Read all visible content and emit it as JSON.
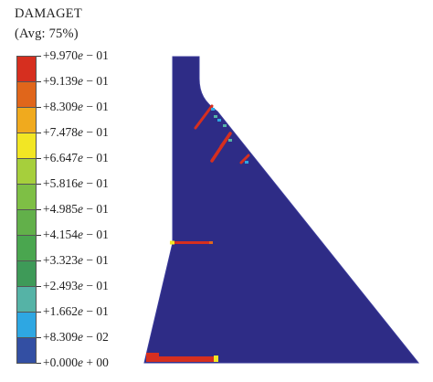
{
  "legend": {
    "variable": "DAMAGET",
    "averaging": "(Avg: 75%)",
    "levels": [
      {
        "mantissa": "+9.970",
        "e": "e",
        "exponent": " − 01"
      },
      {
        "mantissa": "+9.139",
        "e": "e",
        "exponent": " − 01"
      },
      {
        "mantissa": "+8.309",
        "e": "e",
        "exponent": " − 01"
      },
      {
        "mantissa": "+7.478",
        "e": "e",
        "exponent": " − 01"
      },
      {
        "mantissa": "+6.647",
        "e": "e",
        "exponent": " − 01"
      },
      {
        "mantissa": "+5.816",
        "e": "e",
        "exponent": " − 01"
      },
      {
        "mantissa": "+4.985",
        "e": "e",
        "exponent": " − 01"
      },
      {
        "mantissa": "+4.154",
        "e": "e",
        "exponent": " − 01"
      },
      {
        "mantissa": "+3.323",
        "e": "e",
        "exponent": " − 01"
      },
      {
        "mantissa": "+2.493",
        "e": "e",
        "exponent": " − 01"
      },
      {
        "mantissa": "+1.662",
        "e": "e",
        "exponent": " − 01"
      },
      {
        "mantissa": "+8.309",
        "e": "e",
        "exponent": " − 02"
      },
      {
        "mantissa": "+0.000",
        "e": "e",
        "exponent": " + 00"
      }
    ],
    "band_colors": [
      "#d62f1f",
      "#e0661b",
      "#f0aa1e",
      "#f2e624",
      "#a6cf3c",
      "#7ebf45",
      "#62b04a",
      "#4aa64f",
      "#3e9a58",
      "#55b3a6",
      "#2ea7e2",
      "#334fa3",
      "#2e2c86"
    ]
  },
  "model": {
    "body_color": "#2e2c86",
    "outline_color": "#3a3a9a",
    "crack_color": "#d62f1f",
    "crack_halo_colors": [
      "#2ea7e2",
      "#55b3a6",
      "#f2e624",
      "#e0661b"
    ]
  }
}
